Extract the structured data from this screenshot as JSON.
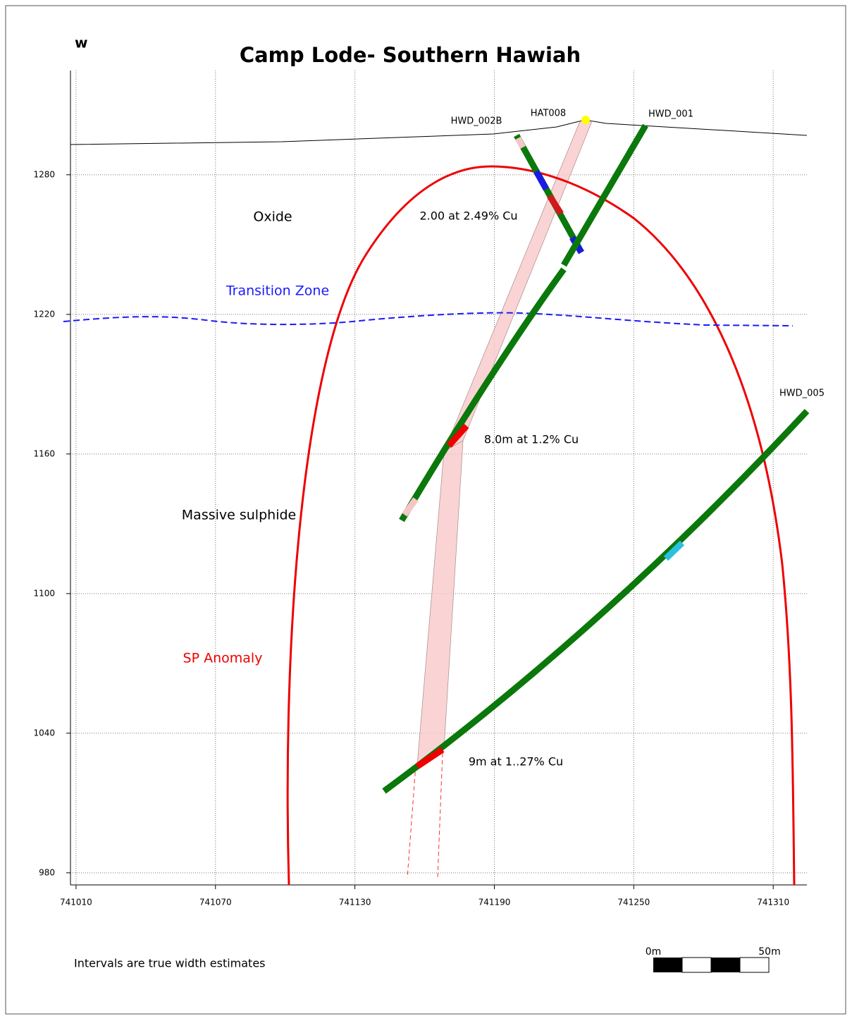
{
  "header": {
    "direction": "w",
    "title": "Camp Lode- Southern Hawiah"
  },
  "axes": {
    "xlim": [
      741007.6,
      741324.5
    ],
    "ylim": [
      974.8,
      1324.8
    ],
    "xticks": [
      741010,
      741070,
      741130,
      741190,
      741250,
      741310
    ],
    "yticks": [
      980,
      1040,
      1100,
      1160,
      1220,
      1280
    ]
  },
  "drillholes": [
    "HWD_002B",
    "HAT008",
    "HWD_001",
    "HWD_005"
  ],
  "zones": {
    "oxide": "Oxide",
    "transition": "Transition Zone",
    "sulphide": "Massive sulphide",
    "anomaly": "SP Anomaly"
  },
  "intercepts": [
    "2.00 at 2.49% Cu",
    "8.0m at 1.2% Cu",
    "9m at 1..27% Cu"
  ],
  "footnote": "Intervals are true width estimates",
  "scale_bar": {
    "start": "0m",
    "end": "50m"
  }
}
